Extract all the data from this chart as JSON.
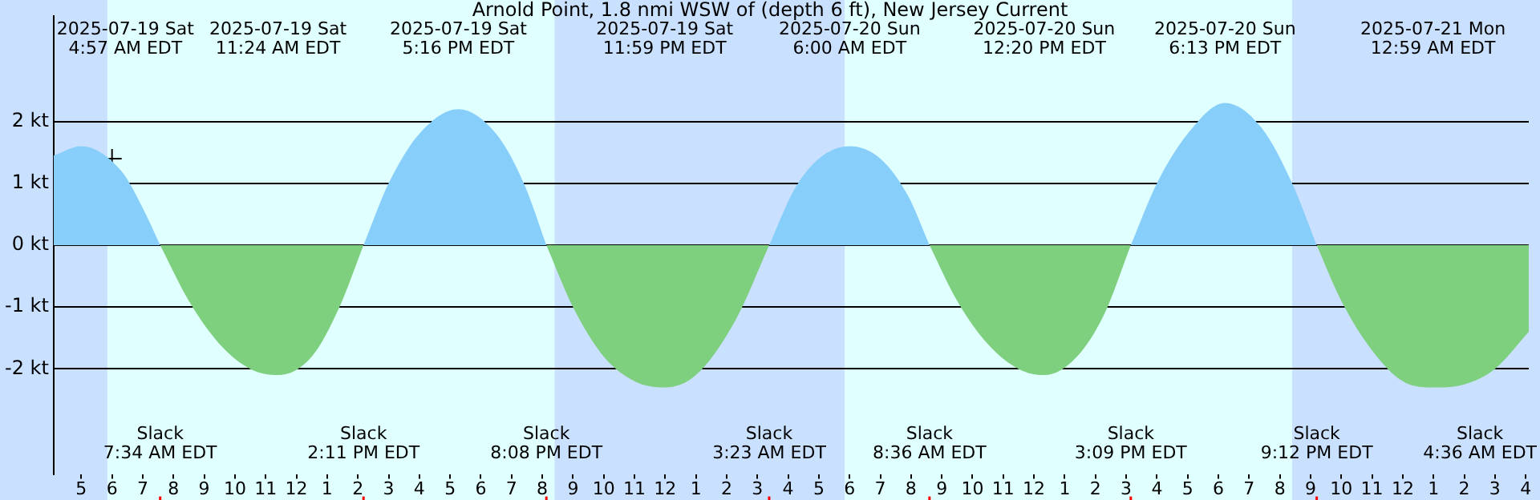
{
  "chart_data": {
    "type": "area",
    "title": "Arnold Point, 1.8 nmi WSW of (depth 6 ft), New Jersey Current",
    "xlim": [
      "2025-07-19T04:06",
      "2025-07-21T04:06"
    ],
    "ylim": [
      -3.7,
      3.7
    ],
    "yticks": [
      {
        "value": -2,
        "label": "-2 kt"
      },
      {
        "value": -1,
        "label": "-1 kt"
      },
      {
        "value": 0,
        "label": "0 kt"
      },
      {
        "value": 1,
        "label": "1 kt"
      },
      {
        "value": 2,
        "label": "2 kt"
      }
    ],
    "xticks": [
      {
        "value": "2025-07-19T05:00",
        "label": "5"
      },
      {
        "value": "2025-07-19T06:00",
        "label": "6"
      },
      {
        "value": "2025-07-19T07:00",
        "label": "7"
      },
      {
        "value": "2025-07-19T08:00",
        "label": "8"
      },
      {
        "value": "2025-07-19T09:00",
        "label": "9"
      },
      {
        "value": "2025-07-19T10:00",
        "label": "10"
      },
      {
        "value": "2025-07-19T11:00",
        "label": "11"
      },
      {
        "value": "2025-07-19T12:00",
        "label": "12"
      },
      {
        "value": "2025-07-19T13:00",
        "label": "1"
      },
      {
        "value": "2025-07-19T14:00",
        "label": "2"
      },
      {
        "value": "2025-07-19T15:00",
        "label": "3"
      },
      {
        "value": "2025-07-19T16:00",
        "label": "4"
      },
      {
        "value": "2025-07-19T17:00",
        "label": "5"
      },
      {
        "value": "2025-07-19T18:00",
        "label": "6"
      },
      {
        "value": "2025-07-19T19:00",
        "label": "7"
      },
      {
        "value": "2025-07-19T20:00",
        "label": "8"
      },
      {
        "value": "2025-07-19T21:00",
        "label": "9"
      },
      {
        "value": "2025-07-19T22:00",
        "label": "10"
      },
      {
        "value": "2025-07-19T23:00",
        "label": "11"
      },
      {
        "value": "2025-07-20T00:00",
        "label": "12"
      },
      {
        "value": "2025-07-20T01:00",
        "label": "1"
      },
      {
        "value": "2025-07-20T02:00",
        "label": "2"
      },
      {
        "value": "2025-07-20T03:00",
        "label": "3"
      },
      {
        "value": "2025-07-20T04:00",
        "label": "4"
      },
      {
        "value": "2025-07-20T05:00",
        "label": "5"
      },
      {
        "value": "2025-07-20T06:00",
        "label": "6"
      },
      {
        "value": "2025-07-20T07:00",
        "label": "7"
      },
      {
        "value": "2025-07-20T08:00",
        "label": "8"
      },
      {
        "value": "2025-07-20T09:00",
        "label": "9"
      },
      {
        "value": "2025-07-20T10:00",
        "label": "10"
      },
      {
        "value": "2025-07-20T11:00",
        "label": "11"
      },
      {
        "value": "2025-07-20T12:00",
        "label": "12"
      },
      {
        "value": "2025-07-20T13:00",
        "label": "1"
      },
      {
        "value": "2025-07-20T14:00",
        "label": "2"
      },
      {
        "value": "2025-07-20T15:00",
        "label": "3"
      },
      {
        "value": "2025-07-20T16:00",
        "label": "4"
      },
      {
        "value": "2025-07-20T17:00",
        "label": "5"
      },
      {
        "value": "2025-07-20T18:00",
        "label": "6"
      },
      {
        "value": "2025-07-20T19:00",
        "label": "7"
      },
      {
        "value": "2025-07-20T20:00",
        "label": "8"
      },
      {
        "value": "2025-07-20T21:00",
        "label": "9"
      },
      {
        "value": "2025-07-20T22:00",
        "label": "10"
      },
      {
        "value": "2025-07-20T23:00",
        "label": "11"
      },
      {
        "value": "2025-07-21T00:00",
        "label": "12"
      },
      {
        "value": "2025-07-21T01:00",
        "label": "1"
      },
      {
        "value": "2025-07-21T02:00",
        "label": "2"
      },
      {
        "value": "2025-07-21T03:00",
        "label": "3"
      },
      {
        "value": "2025-07-21T04:00",
        "label": "4"
      }
    ],
    "grid": "y",
    "legend": false,
    "series": [
      {
        "color": "#87cefa",
        "x": [
          "2025-07-19T04:06",
          "2025-07-19T05:00",
          "2025-07-19T06:18",
          "2025-07-19T07:00",
          "2025-07-19T07:34",
          null,
          "2025-07-19T14:11",
          "2025-07-19T15:00",
          "2025-07-19T16:00",
          "2025-07-19T17:16",
          "2025-07-19T18:30",
          "2025-07-19T19:24",
          "2025-07-19T20:08",
          null,
          "2025-07-20T03:23",
          "2025-07-20T04:12",
          "2025-07-20T05:00",
          "2025-07-20T06:00",
          "2025-07-20T07:00",
          "2025-07-20T07:54",
          "2025-07-20T08:36",
          null,
          "2025-07-20T15:09",
          "2025-07-20T16:00",
          "2025-07-20T17:00",
          "2025-07-20T18:13",
          "2025-07-20T19:24",
          "2025-07-20T20:24",
          "2025-07-20T21:12"
        ],
        "values": [
          1.45,
          1.6,
          1.2,
          0.6,
          0,
          null,
          0,
          1.0,
          1.8,
          2.2,
          1.8,
          1.0,
          0,
          null,
          0,
          0.9,
          1.4,
          1.6,
          1.4,
          0.8,
          0,
          null,
          0,
          1.0,
          1.8,
          2.3,
          1.9,
          1.0,
          0
        ]
      },
      {
        "color": "#7ecf7e",
        "x": [
          "2025-07-19T07:34",
          "2025-07-19T08:30",
          "2025-07-19T09:30",
          "2025-07-19T10:30",
          "2025-07-19T11:24",
          "2025-07-19T12:30",
          "2025-07-19T13:24",
          "2025-07-19T14:11",
          null,
          "2025-07-19T20:08",
          "2025-07-19T21:00",
          "2025-07-19T22:00",
          "2025-07-19T23:00",
          "2025-07-19T23:59",
          "2025-07-20T01:00",
          "2025-07-20T02:18",
          "2025-07-20T03:23",
          null,
          "2025-07-20T08:36",
          "2025-07-20T09:30",
          "2025-07-20T10:30",
          "2025-07-20T11:30",
          "2025-07-20T12:20",
          "2025-07-20T13:24",
          "2025-07-20T14:18",
          "2025-07-20T15:09",
          null,
          "2025-07-20T21:12",
          "2025-07-20T22:00",
          "2025-07-20T23:00",
          "2025-07-21T00:00",
          "2025-07-21T00:59",
          "2025-07-21T02:00",
          "2025-07-21T03:00",
          "2025-07-21T04:06"
        ],
        "values": [
          0,
          -0.9,
          -1.6,
          -2.0,
          -2.1,
          -1.8,
          -1.0,
          0,
          null,
          0,
          -1.0,
          -1.8,
          -2.2,
          -2.3,
          -2.1,
          -1.2,
          0,
          null,
          0,
          -0.9,
          -1.6,
          -2.0,
          -2.1,
          -1.8,
          -1.1,
          0,
          null,
          0,
          -0.9,
          -1.7,
          -2.2,
          -2.3,
          -2.25,
          -2.0,
          -1.4
        ]
      },
      {
        "type": "scatter",
        "color": "#000000",
        "marker": "cross",
        "x": [
          "2025-07-19T06:00"
        ],
        "values": [
          1.4
        ]
      }
    ],
    "bands": [
      {
        "axis": "x",
        "from": "2025-07-19T04:06",
        "to": "2025-07-19T05:51",
        "color": "#cae0ff"
      },
      {
        "axis": "x",
        "from": "2025-07-19T05:51",
        "to": "2025-07-19T20:24",
        "color": "#e0ffff"
      },
      {
        "axis": "x",
        "from": "2025-07-19T20:24",
        "to": "2025-07-20T05:51",
        "color": "#cae0ff"
      },
      {
        "axis": "x",
        "from": "2025-07-20T05:51",
        "to": "2025-07-20T20:24",
        "color": "#e0ffff"
      },
      {
        "axis": "x",
        "from": "2025-07-20T20:24",
        "to": "2025-07-21T04:06",
        "color": "#cae0ff"
      }
    ],
    "annotations": [
      "2025-07-19 Sat\n4:57 AM EDT",
      "2025-07-19 Sat\n11:24 AM EDT",
      "2025-07-19 Sat\n5:16 PM EDT",
      "2025-07-19 Sat\n11:59 PM EDT",
      "2025-07-20 Sun\n6:00 AM EDT",
      "2025-07-20 Sun\n12:20 PM EDT",
      "2025-07-20 Sun\n6:13 PM EDT",
      "2025-07-21 Mon\n12:59 AM EDT",
      "Slack\n7:34 AM EDT",
      "Slack\n2:11 PM EDT",
      "Slack\n8:08 PM EDT",
      "Slack\n3:23 AM EDT",
      "Slack\n8:36 AM EDT",
      "Slack\n3:09 PM EDT",
      "Slack\n9:12 PM EDT",
      "Slack\n4:36 AM EDT"
    ]
  }
}
